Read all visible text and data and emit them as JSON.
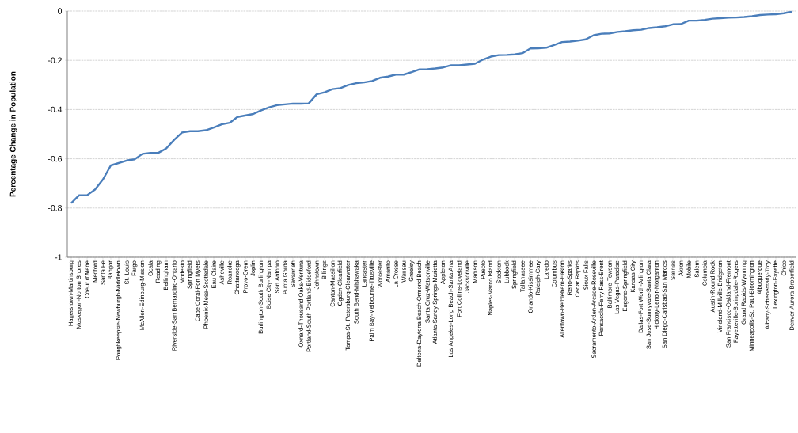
{
  "chart_data": {
    "type": "line",
    "ylabel": "Percentage Change in Population",
    "grid": "y",
    "ylim": [
      -1,
      0
    ],
    "yticks": [
      -1,
      -0.8,
      -0.6,
      -0.4,
      -0.2,
      0
    ],
    "categories": [
      "Hagerstown-Martinsburg",
      "Muskegon-Norton Shores",
      "Coeur d'Alene",
      "Medford",
      "Santa Fe",
      "Bangor",
      "Poughkeepsie-Newburgh-Middletown",
      "St. Louis",
      "Fargo",
      "McAllen-Edinburg-Mission",
      "Ocala",
      "Reading",
      "Bellingham",
      "Riverside-San Bernardino-Ontario",
      "Modesto",
      "Springfield",
      "Cape Coral-Fort Myers",
      "Phoenix-Mesa-Scottsdale",
      "Eau Claire",
      "Asheville",
      "Roanoke",
      "Chattanooga",
      "Provo-Orem",
      "Joplin",
      "Burlington-South Burlington",
      "Boise City-Nampa",
      "San Antonio",
      "Punta Gorda",
      "Savannah",
      "Oxnard-Thousand Oaks-Ventura",
      "Portland-South Portland-Biddeford",
      "Johnstown",
      "Billings",
      "Canton-Massillon",
      "Ogden-Clearfield",
      "Tampa-St. Petersburg-Clearwater",
      "South Bend-Mishawaka",
      "Lancaster",
      "Palm Bay-Melbourne-Titusville",
      "Worcester",
      "Amarillo",
      "La Crosse",
      "Wausau",
      "Greeley",
      "Deltona-Daytona Beach-Ormond Beach",
      "Santa Cruz-Watsonville",
      "Atlanta-Sandy Springs-Marietta",
      "Appleton",
      "Los Angeles-Long Beach-Santa Ana",
      "Fort Collins-Loveland",
      "Jacksonville",
      "Madison",
      "Pueblo",
      "Naples-Marco Island",
      "Stockton",
      "Lubbock",
      "Springfield",
      "Tallahassee",
      "Orlando-Kissimmee",
      "Raleigh-Cary",
      "Laredo",
      "Columbus",
      "Allentown-Bethlehem-Easton",
      "Reno-Sparks",
      "Cedar Rapids",
      "Sioux Falls",
      "Sacramento-Arden-Arcade-Roseville",
      "Pensacola-Ferry Pass-Brent",
      "Baltimore-Towson",
      "Las Vegas-Paradise",
      "Eugene-Springfield",
      "Kansas City",
      "Dallas-Fort Worth-Arlington",
      "San Jose-Sunnyvale-Santa Clara",
      "Hickory-Lenoir-Morganton",
      "San Diego-Carlsbad-San Marcos",
      "Salinas",
      "Akron",
      "Mobile",
      "Salem",
      "Columbia",
      "Austin-Round Rock",
      "Vineland-Millville-Bridgeton",
      "San Francisco-Oakland-Fremont",
      "Fayetteville-Springdale-Rogers",
      "Grand Rapids-Wyoming",
      "Minneapolis-St. Paul-Bloomington",
      "Albuquerque",
      "Albany-Schenectady-Troy",
      "Lexington-Fayette",
      "Chico",
      "Denver-Aurora-Broomfield"
    ],
    "series": [
      {
        "color": "#4a7ebb",
        "values": [
          -0.78,
          -0.748,
          -0.748,
          -0.725,
          -0.684,
          -0.627,
          -0.617,
          -0.607,
          -0.602,
          -0.58,
          -0.576,
          -0.576,
          -0.558,
          -0.523,
          -0.493,
          -0.488,
          -0.488,
          -0.484,
          -0.473,
          -0.46,
          -0.454,
          -0.43,
          -0.424,
          -0.418,
          -0.403,
          -0.391,
          -0.382,
          -0.379,
          -0.376,
          -0.376,
          -0.375,
          -0.338,
          -0.33,
          -0.317,
          -0.313,
          -0.3,
          -0.293,
          -0.29,
          -0.284,
          -0.271,
          -0.266,
          -0.258,
          -0.258,
          -0.248,
          -0.237,
          -0.236,
          -0.233,
          -0.229,
          -0.22,
          -0.22,
          -0.217,
          -0.214,
          -0.197,
          -0.185,
          -0.179,
          -0.178,
          -0.176,
          -0.171,
          -0.152,
          -0.151,
          -0.149,
          -0.138,
          -0.126,
          -0.124,
          -0.12,
          -0.115,
          -0.098,
          -0.092,
          -0.091,
          -0.085,
          -0.082,
          -0.078,
          -0.076,
          -0.069,
          -0.066,
          -0.062,
          -0.054,
          -0.053,
          -0.039,
          -0.039,
          -0.036,
          -0.031,
          -0.029,
          -0.027,
          -0.026,
          -0.024,
          -0.021,
          -0.016,
          -0.014,
          -0.013,
          -0.009,
          -0.003
        ]
      }
    ]
  }
}
